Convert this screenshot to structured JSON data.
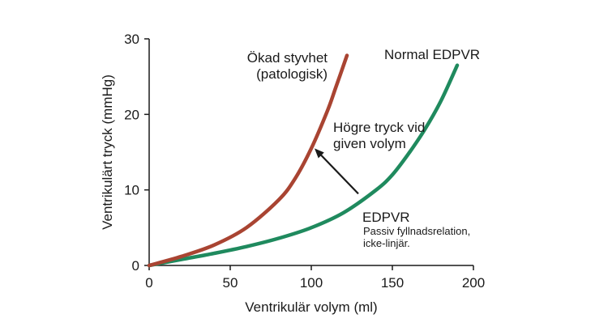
{
  "chart_data": {
    "type": "line",
    "xlabel": "Ventrikulär volym (ml)",
    "ylabel": "Ventrikulärt tryck (mmHg)",
    "xlim": [
      0,
      200
    ],
    "ylim": [
      0,
      30
    ],
    "x_ticks": [
      "0",
      "50",
      "100",
      "150",
      "200"
    ],
    "y_ticks": [
      "0",
      "10",
      "20",
      "30"
    ],
    "grid": false,
    "series": [
      {
        "name": "Normal EDPVR",
        "color": "#1f8a5e",
        "x": [
          0,
          20,
          40,
          60,
          80,
          100,
          120,
          140,
          150,
          160,
          170,
          180,
          190
        ],
        "y": [
          0,
          0.8,
          1.6,
          2.5,
          3.6,
          5.0,
          7.0,
          10.0,
          12.0,
          14.8,
          18.0,
          21.8,
          26.5
        ]
      },
      {
        "name": "Ökad styvhet (patologisk)",
        "color": "#a94432",
        "x": [
          0,
          20,
          40,
          60,
          80,
          90,
          100,
          110,
          115,
          122
        ],
        "y": [
          0,
          1.2,
          2.7,
          5.0,
          8.7,
          11.5,
          15.5,
          20.5,
          23.5,
          27.8
        ]
      }
    ],
    "annotations": {
      "normal_label": "Normal EDPVR",
      "stiff_label_1": "Ökad styvhet",
      "stiff_label_2": "(patologisk)",
      "arrow_label_1": "Högre tryck vid",
      "arrow_label_2": "given volym",
      "edpvr_title": "EDPVR",
      "edpvr_desc_1": "Passiv fyllnadsrelation,",
      "edpvr_desc_2": "icke-linjär."
    },
    "arrow": {
      "from": [
        129,
        9.5
      ],
      "to": [
        102,
        15.5
      ],
      "color": "#1a1a1a"
    }
  }
}
